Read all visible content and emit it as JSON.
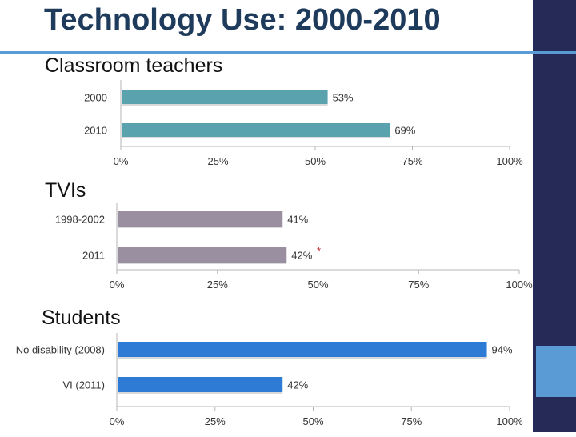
{
  "slide": {
    "title": "Technology Use:  2000-2010",
    "sections": [
      {
        "label": "Classroom teachers"
      },
      {
        "label": "TVIs",
        "marker": "*"
      },
      {
        "label": "Students"
      }
    ],
    "colors": {
      "right_band": "#252a57",
      "accent": "#5b9bd5",
      "title": "#1f3b5c",
      "teachers_bar": "#5aa3ae",
      "tvis_bar": "#9a8ea1",
      "students_bar": "#2e7bd6"
    }
  },
  "chart_data": [
    {
      "type": "bar",
      "orientation": "horizontal",
      "title": "Classroom teachers",
      "categories": [
        "2000",
        "2010"
      ],
      "values": [
        53,
        69
      ],
      "value_labels": [
        "53%",
        "69%"
      ],
      "xlim": [
        0,
        100
      ],
      "xticks": [
        "0%",
        "25%",
        "50%",
        "75%",
        "100%"
      ],
      "color": "#5aa3ae"
    },
    {
      "type": "bar",
      "orientation": "horizontal",
      "title": "TVIs",
      "categories": [
        "1998-2002",
        "2011"
      ],
      "values": [
        41,
        42
      ],
      "value_labels": [
        "41%",
        "42%"
      ],
      "xlim": [
        0,
        100
      ],
      "xticks": [
        "0%",
        "25%",
        "50%",
        "75%",
        "100%"
      ],
      "color": "#9a8ea1"
    },
    {
      "type": "bar",
      "orientation": "horizontal",
      "title": "Students",
      "categories": [
        "No disability (2008)",
        "VI (2011)"
      ],
      "values": [
        94,
        42
      ],
      "value_labels": [
        "94%",
        "42%"
      ],
      "xlim": [
        0,
        100
      ],
      "xticks": [
        "0%",
        "25%",
        "50%",
        "75%",
        "100%"
      ],
      "color": "#2e7bd6"
    }
  ]
}
